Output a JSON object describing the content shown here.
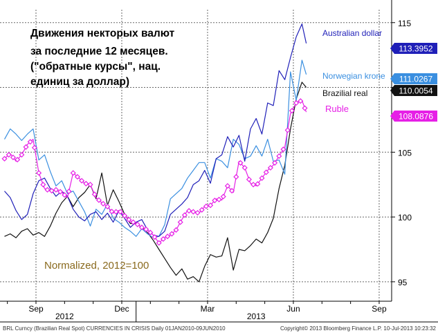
{
  "chart_data": {
    "type": "line",
    "title_lines": [
      "Движения некторых валют",
      "за последние 12 месяцев.",
      "(\"обратные курсы\", нац.",
      "единиц за доллар)"
    ],
    "annotation": "Normalized, 2012=100",
    "ylim": [
      93.5,
      116
    ],
    "y_ticks": [
      "95",
      "100",
      "105",
      "110",
      "115"
    ],
    "y_tick_values": [
      95,
      100,
      105,
      110,
      115
    ],
    "xlim": [
      0,
      11.6
    ],
    "x_ticks": [
      {
        "label": "Sep",
        "x": 0.0
      },
      {
        "label": "Dec",
        "x": 3.0
      },
      {
        "label": "Mar",
        "x": 6.0
      },
      {
        "label": "Jun",
        "x": 9.0
      },
      {
        "label": "Sep",
        "x": 12.0
      }
    ],
    "year_labels": [
      {
        "label": "2012",
        "x": 1.0
      },
      {
        "label": "2013",
        "x": 7.7
      }
    ],
    "year_divider_x": 3.5,
    "footer_left": "BRL Curncy (Brazilian Real Spot) CURRENCIES IN CRISIS  Daily 01JAN2010-09JUN2010",
    "footer_right": "Copyright© 2013 Bloomberg Finance L.P.        10-Jul-2013 10:23:32",
    "series": [
      {
        "name": "Australian dollar",
        "last_value": "113.3952",
        "color": "#1f1fb8",
        "x": [
          -1.1,
          -0.9,
          -0.7,
          -0.5,
          -0.3,
          -0.1,
          0.1,
          0.3,
          0.5,
          0.7,
          0.9,
          1.1,
          1.3,
          1.5,
          1.7,
          1.9,
          2.1,
          2.3,
          2.5,
          2.7,
          2.9,
          3.1,
          3.3,
          3.5,
          3.7,
          3.9,
          4.1,
          4.3,
          4.5,
          4.7,
          4.9,
          5.1,
          5.3,
          5.5,
          5.7,
          5.9,
          6.1,
          6.3,
          6.5,
          6.7,
          6.9,
          7.1,
          7.3,
          7.5,
          7.7,
          7.9,
          8.1,
          8.3,
          8.5,
          8.7,
          8.9,
          9.1,
          9.3,
          9.45
        ],
        "values": [
          102.0,
          101.5,
          100.5,
          99.8,
          100.2,
          101.8,
          102.8,
          103.0,
          102.2,
          101.6,
          102.0,
          101.6,
          100.6,
          100.0,
          99.7,
          100.2,
          100.4,
          99.8,
          100.3,
          99.6,
          100.5,
          99.9,
          99.2,
          99.6,
          99.8,
          99.0,
          98.6,
          98.5,
          98.9,
          100.2,
          100.6,
          101.0,
          101.5,
          102.5,
          102.8,
          103.6,
          102.6,
          104.5,
          104.8,
          106.2,
          105.4,
          106.3,
          104.3,
          106.8,
          107.6,
          106.4,
          108.8,
          108.6,
          111.3,
          110.6,
          112.3,
          113.9,
          114.9,
          113.4
        ]
      },
      {
        "name": "Norwegian krone",
        "last_value": "111.0267",
        "color": "#3a8fe0",
        "x": [
          -1.1,
          -0.9,
          -0.7,
          -0.5,
          -0.3,
          -0.1,
          0.1,
          0.3,
          0.5,
          0.7,
          0.9,
          1.1,
          1.3,
          1.5,
          1.7,
          1.9,
          2.1,
          2.3,
          2.5,
          2.7,
          2.9,
          3.1,
          3.3,
          3.5,
          3.7,
          3.9,
          4.1,
          4.3,
          4.5,
          4.7,
          4.9,
          5.1,
          5.3,
          5.5,
          5.7,
          5.9,
          6.1,
          6.3,
          6.5,
          6.7,
          6.9,
          7.1,
          7.3,
          7.5,
          7.7,
          7.9,
          8.1,
          8.3,
          8.5,
          8.7,
          8.9,
          9.1,
          9.3,
          9.45
        ],
        "values": [
          106.0,
          106.8,
          106.4,
          105.9,
          106.4,
          106.8,
          104.4,
          104.8,
          103.5,
          102.4,
          102.8,
          101.8,
          102.0,
          101.2,
          100.4,
          99.3,
          100.6,
          100.2,
          101.0,
          99.9,
          99.6,
          99.2,
          98.9,
          98.5,
          99.1,
          98.7,
          98.4,
          98.5,
          99.4,
          101.4,
          101.8,
          102.2,
          103.0,
          103.6,
          104.2,
          104.2,
          103.0,
          104.5,
          104.3,
          103.8,
          106.0,
          105.6,
          104.5,
          104.7,
          105.5,
          104.7,
          106.0,
          104.3,
          104.4,
          103.3,
          111.2,
          109.0,
          112.1,
          111.0
        ]
      },
      {
        "name": "Brazilial real",
        "last_value": "110.0054",
        "color": "#111111",
        "x": [
          -1.1,
          -0.9,
          -0.7,
          -0.5,
          -0.3,
          -0.1,
          0.1,
          0.3,
          0.5,
          0.7,
          0.9,
          1.1,
          1.3,
          1.5,
          1.7,
          1.9,
          2.1,
          2.3,
          2.5,
          2.7,
          2.9,
          3.1,
          3.3,
          3.5,
          3.7,
          3.9,
          4.1,
          4.3,
          4.5,
          4.7,
          4.9,
          5.1,
          5.3,
          5.5,
          5.7,
          5.9,
          6.1,
          6.3,
          6.5,
          6.7,
          6.9,
          7.1,
          7.3,
          7.5,
          7.7,
          7.9,
          8.1,
          8.3,
          8.5,
          8.7,
          8.9,
          9.1,
          9.3,
          9.45
        ],
        "values": [
          98.5,
          98.7,
          98.4,
          98.9,
          99.1,
          98.6,
          98.8,
          98.5,
          99.3,
          100.3,
          101.1,
          101.6,
          100.8,
          101.5,
          101.9,
          102.5,
          101.4,
          103.4,
          100.9,
          102.1,
          101.2,
          100.2,
          99.5,
          99.5,
          99.2,
          98.8,
          98.2,
          97.5,
          96.8,
          96.1,
          95.5,
          96.0,
          95.2,
          95.4,
          95.0,
          96.2,
          97.1,
          96.9,
          97.0,
          98.4,
          95.9,
          97.5,
          97.4,
          97.8,
          98.3,
          98.0,
          98.8,
          99.9,
          102.2,
          104.0,
          106.8,
          109.1,
          110.4,
          110.0
        ]
      },
      {
        "name": "Ruble",
        "last_value": "108.0876",
        "color": "#e61fe6",
        "x": [
          -1.1,
          -0.9,
          -0.7,
          -0.5,
          -0.3,
          -0.1,
          0.1,
          0.3,
          0.5,
          0.7,
          0.9,
          1.1,
          1.3,
          1.5,
          1.7,
          1.9,
          2.1,
          2.3,
          2.5,
          2.7,
          2.9,
          3.1,
          3.3,
          3.5,
          3.7,
          3.9,
          4.1,
          4.3,
          4.5,
          4.7,
          4.9,
          5.1,
          5.3,
          5.5,
          5.7,
          5.9,
          6.1,
          6.3,
          6.5,
          6.7,
          6.9,
          7.1,
          7.3,
          7.5,
          7.7,
          7.9,
          8.1,
          8.3,
          8.5,
          8.7,
          8.9,
          9.1,
          9.3,
          9.45
        ],
        "values": [
          104.5,
          104.9,
          104.3,
          104.8,
          105.6,
          106.0,
          103.4,
          102.2,
          102.0,
          102.1,
          101.9,
          101.5,
          103.4,
          103.0,
          102.6,
          102.5,
          101.5,
          101.1,
          100.8,
          100.3,
          100.5,
          100.1,
          99.7,
          99.5,
          99.2,
          99.0,
          98.6,
          98.0,
          98.4,
          98.6,
          99.0,
          99.8,
          100.5,
          100.4,
          100.3,
          100.8,
          100.9,
          101.4,
          101.3,
          102.4,
          101.9,
          104.3,
          103.8,
          102.6,
          102.4,
          103.0,
          103.6,
          104.0,
          104.7,
          105.4,
          108.0,
          108.8,
          109.0,
          108.1
        ]
      }
    ],
    "ruble_marker_x": [
      -1.1,
      -0.95,
      -0.8,
      -0.65,
      -0.5,
      -0.35,
      -0.2,
      -0.05,
      0.1,
      0.25,
      0.4,
      0.55,
      0.7,
      0.85,
      1.0,
      1.15,
      1.3,
      1.45,
      1.6,
      1.75,
      1.9,
      2.05,
      2.2,
      2.35,
      2.5,
      2.65,
      2.8,
      2.95,
      3.1,
      3.25,
      3.4,
      3.55,
      3.7,
      3.85,
      4.0,
      4.15,
      4.3,
      4.45,
      4.6,
      4.75,
      4.9,
      5.05,
      5.2,
      5.35,
      5.5,
      5.65,
      5.8,
      5.95,
      6.1,
      6.25,
      6.4,
      6.55,
      6.7,
      6.85,
      7.0,
      7.15,
      7.3,
      7.45,
      7.6,
      7.75,
      7.9,
      8.05,
      8.2,
      8.35,
      8.5,
      8.65,
      8.8,
      8.95,
      9.1,
      9.25,
      9.4
    ]
  }
}
